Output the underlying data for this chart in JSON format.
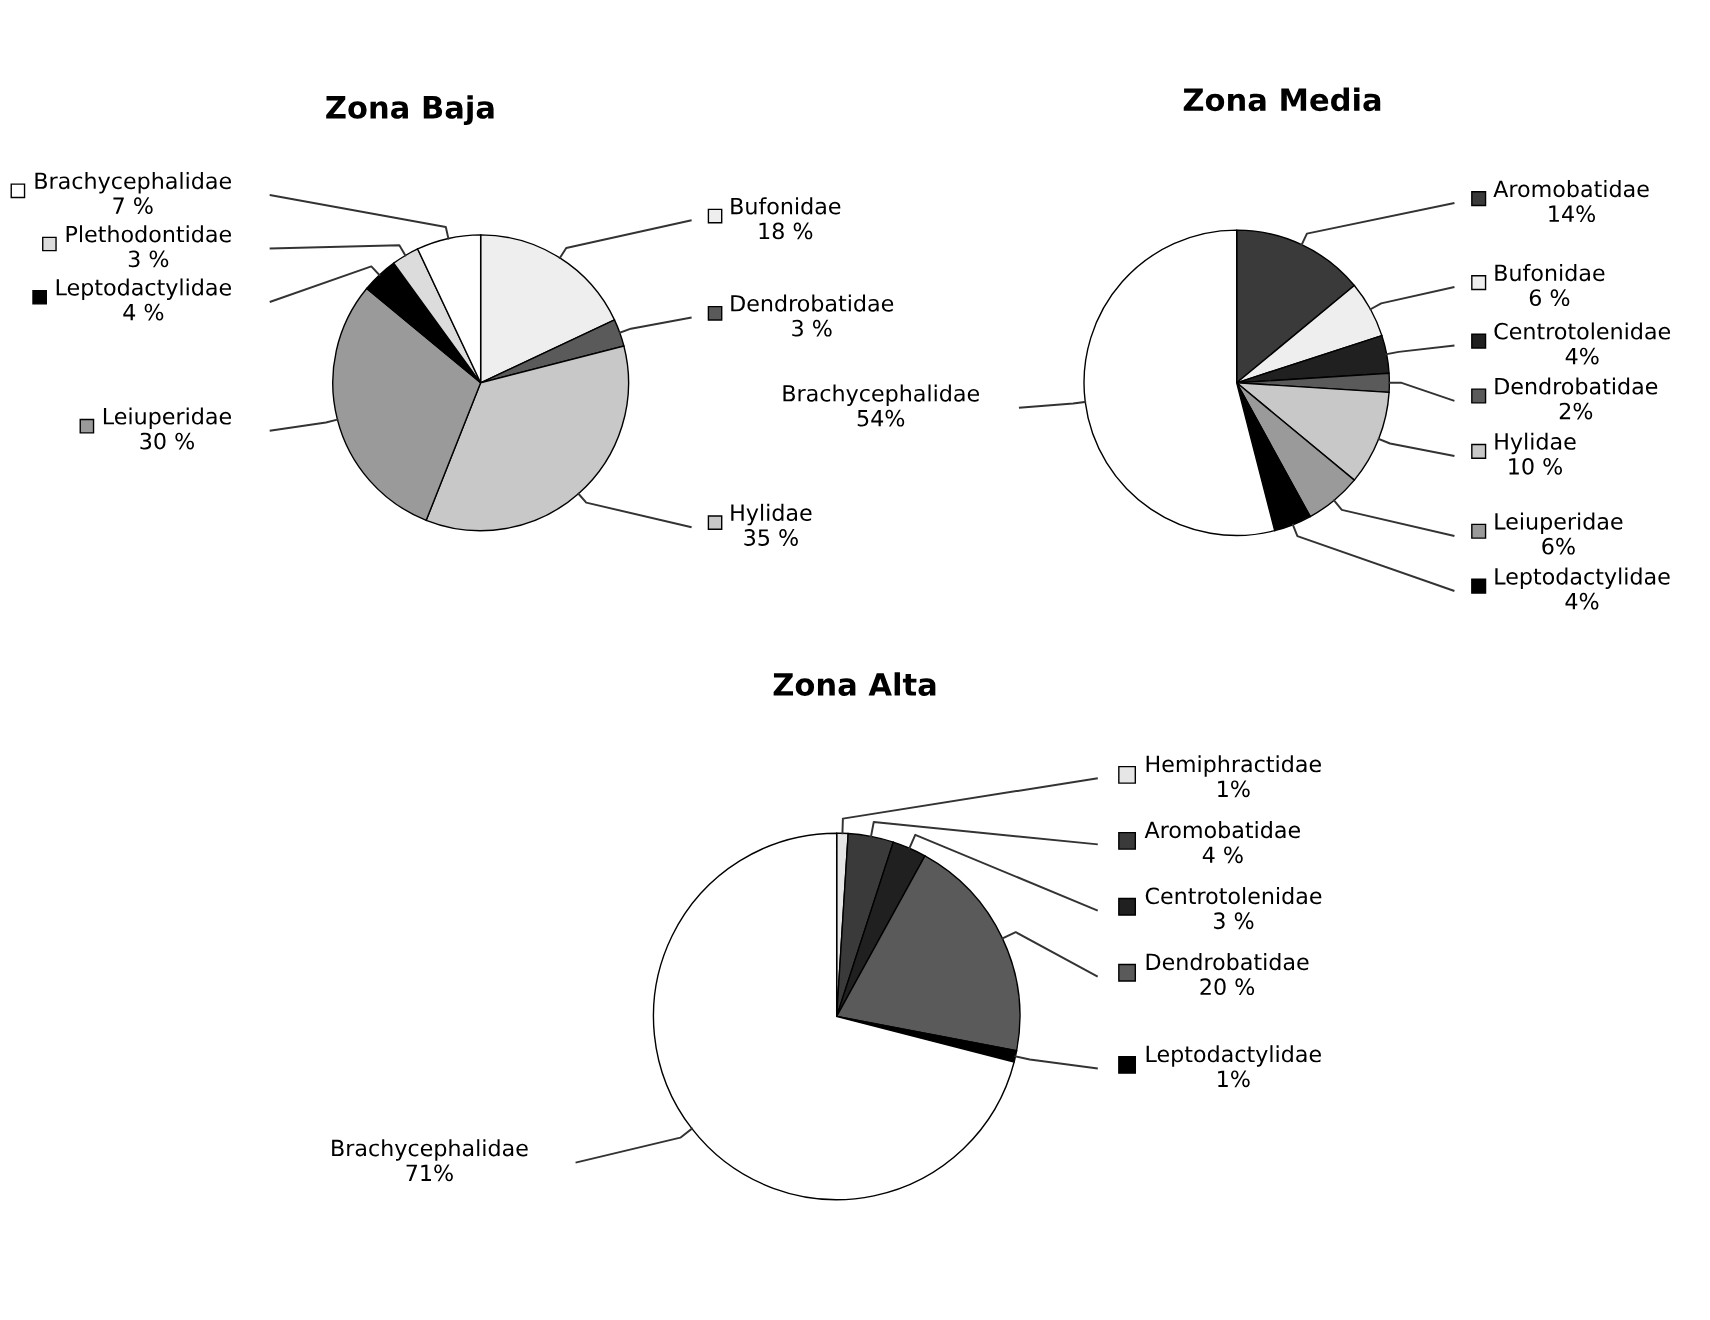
{
  "chart_data": [
    {
      "type": "pie",
      "title": "Zona Baja",
      "legend": "left",
      "categories": [
        "Bufonidae",
        "Dendrobatidae",
        "Hylidae",
        "Leiuperidae",
        "Leptodactylidae",
        "Plethodontidae",
        "Brachycephalidae"
      ],
      "values": [
        18,
        3,
        35,
        30,
        4,
        3,
        7
      ],
      "value_labels": [
        "18 %",
        "3 %",
        "35 %",
        "30 %",
        "4 %",
        "3 %",
        "7 %"
      ],
      "colors": [
        "#eeeeee",
        "#5a5a5a",
        "#c8c8c8",
        "#9a9a9a",
        "#000000",
        "#dcdcdc",
        "#ffffff"
      ]
    },
    {
      "type": "pie",
      "title": "Zona Media",
      "legend": "right",
      "categories": [
        "Aromobatidae",
        "Bufonidae",
        "Centrotolenidae",
        "Dendrobatidae",
        "Hylidae",
        "Leiuperidae",
        "Leptodactylidae",
        "Brachycephalidae"
      ],
      "values": [
        14,
        6,
        4,
        2,
        10,
        6,
        4,
        54
      ],
      "value_labels": [
        "14%",
        "6 %",
        "4%",
        "2%",
        "10 %",
        "6%",
        "4%",
        "54%"
      ],
      "colors": [
        "#3a3a3a",
        "#eeeeee",
        "#202020",
        "#5a5a5a",
        "#c8c8c8",
        "#9a9a9a",
        "#000000",
        "#ffffff"
      ]
    },
    {
      "type": "pie",
      "title": "Zona Alta",
      "legend": "right",
      "categories": [
        "Hemiphractidae",
        "Aromobatidae",
        "Centrotolenidae",
        "Dendrobatidae",
        "Leptodactylidae",
        "Brachycephalidae"
      ],
      "values": [
        1,
        4,
        3,
        20,
        1,
        71
      ],
      "value_labels": [
        "1%",
        "4 %",
        "3 %",
        "20 %",
        "1%",
        "71%"
      ],
      "colors": [
        "#e6e6e6",
        "#3a3a3a",
        "#202020",
        "#5a5a5a",
        "#000000",
        "#ffffff"
      ]
    }
  ]
}
